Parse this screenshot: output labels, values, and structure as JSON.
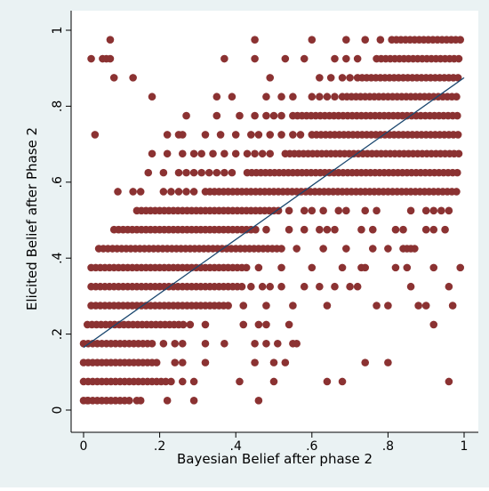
{
  "colors": {
    "background": "#eaf2f3",
    "plot_background": "#ffffff",
    "points": "#8b3232",
    "fit_line": "#1a476f",
    "axis": "#000000"
  },
  "chart_data": {
    "type": "scatter",
    "title": "",
    "xlabel": "Bayesian Belief after phase 2",
    "ylabel": "Elicited Belief after Phase 2",
    "xlim": [
      0,
      1
    ],
    "ylim": [
      0,
      1
    ],
    "x_ticks": [
      0,
      0.2,
      0.4,
      0.6,
      0.8,
      1
    ],
    "x_tick_labels": [
      "0",
      ".2",
      ".4",
      ".6",
      ".8",
      "1"
    ],
    "y_ticks": [
      0,
      0.2,
      0.4,
      0.6,
      0.8,
      1
    ],
    "y_tick_labels": [
      "0",
      ".2",
      ".4",
      ".6",
      ".8",
      "1"
    ],
    "grid": false,
    "legend": "none",
    "fit_line": {
      "x": [
        0,
        1
      ],
      "y": [
        0.165,
        0.875
      ]
    },
    "y_levels": [
      0.025,
      0.075,
      0.125,
      0.175,
      0.225,
      0.275,
      0.325,
      0.375,
      0.425,
      0.475,
      0.525,
      0.575,
      0.625,
      0.675,
      0.725,
      0.775,
      0.825,
      0.875,
      0.925,
      0.975
    ],
    "dense_ranges": [
      [
        0.025,
        0.0,
        0.13
      ],
      [
        0.075,
        0.0,
        0.22
      ],
      [
        0.125,
        0.0,
        0.2
      ],
      [
        0.175,
        0.0,
        0.17
      ],
      [
        0.225,
        0.01,
        0.27
      ],
      [
        0.275,
        0.02,
        0.38
      ],
      [
        0.325,
        0.02,
        0.42
      ],
      [
        0.375,
        0.02,
        0.43
      ],
      [
        0.425,
        0.04,
        0.53
      ],
      [
        0.475,
        0.08,
        0.46
      ],
      [
        0.525,
        0.14,
        0.52
      ],
      [
        0.575,
        0.32,
        0.99
      ],
      [
        0.625,
        0.43,
        0.99
      ],
      [
        0.675,
        0.53,
        0.99
      ],
      [
        0.725,
        0.6,
        0.99
      ],
      [
        0.775,
        0.55,
        0.99
      ],
      [
        0.825,
        0.68,
        0.99
      ],
      [
        0.875,
        0.72,
        0.99
      ],
      [
        0.925,
        0.77,
        0.99
      ],
      [
        0.975,
        0.81,
        0.99
      ]
    ],
    "scattered_points": [
      [
        0.01,
        0.025
      ],
      [
        0.14,
        0.025
      ],
      [
        0.15,
        0.025
      ],
      [
        0.22,
        0.025
      ],
      [
        0.29,
        0.025
      ],
      [
        0.46,
        0.025
      ],
      [
        0.23,
        0.075
      ],
      [
        0.26,
        0.075
      ],
      [
        0.29,
        0.075
      ],
      [
        0.41,
        0.075
      ],
      [
        0.5,
        0.075
      ],
      [
        0.64,
        0.075
      ],
      [
        0.68,
        0.075
      ],
      [
        0.96,
        0.075
      ],
      [
        0.24,
        0.125
      ],
      [
        0.26,
        0.125
      ],
      [
        0.32,
        0.125
      ],
      [
        0.45,
        0.125
      ],
      [
        0.5,
        0.125
      ],
      [
        0.53,
        0.125
      ],
      [
        0.74,
        0.125
      ],
      [
        0.8,
        0.125
      ],
      [
        0.18,
        0.175
      ],
      [
        0.21,
        0.175
      ],
      [
        0.24,
        0.175
      ],
      [
        0.26,
        0.175
      ],
      [
        0.32,
        0.175
      ],
      [
        0.37,
        0.175
      ],
      [
        0.45,
        0.175
      ],
      [
        0.48,
        0.175
      ],
      [
        0.51,
        0.175
      ],
      [
        0.55,
        0.175
      ],
      [
        0.56,
        0.175
      ],
      [
        0.28,
        0.225
      ],
      [
        0.32,
        0.225
      ],
      [
        0.42,
        0.225
      ],
      [
        0.46,
        0.225
      ],
      [
        0.48,
        0.225
      ],
      [
        0.54,
        0.225
      ],
      [
        0.92,
        0.225
      ],
      [
        0.42,
        0.275
      ],
      [
        0.48,
        0.275
      ],
      [
        0.55,
        0.275
      ],
      [
        0.64,
        0.275
      ],
      [
        0.77,
        0.275
      ],
      [
        0.8,
        0.275
      ],
      [
        0.88,
        0.275
      ],
      [
        0.9,
        0.275
      ],
      [
        0.97,
        0.275
      ],
      [
        0.44,
        0.325
      ],
      [
        0.47,
        0.325
      ],
      [
        0.49,
        0.325
      ],
      [
        0.52,
        0.325
      ],
      [
        0.58,
        0.325
      ],
      [
        0.62,
        0.325
      ],
      [
        0.66,
        0.325
      ],
      [
        0.7,
        0.325
      ],
      [
        0.72,
        0.325
      ],
      [
        0.86,
        0.325
      ],
      [
        0.96,
        0.325
      ],
      [
        0.46,
        0.375
      ],
      [
        0.52,
        0.375
      ],
      [
        0.6,
        0.375
      ],
      [
        0.68,
        0.375
      ],
      [
        0.73,
        0.375
      ],
      [
        0.74,
        0.375
      ],
      [
        0.82,
        0.375
      ],
      [
        0.85,
        0.375
      ],
      [
        0.92,
        0.375
      ],
      [
        0.99,
        0.375
      ],
      [
        0.56,
        0.425
      ],
      [
        0.63,
        0.425
      ],
      [
        0.69,
        0.425
      ],
      [
        0.76,
        0.425
      ],
      [
        0.8,
        0.425
      ],
      [
        0.84,
        0.425
      ],
      [
        0.85,
        0.425
      ],
      [
        0.86,
        0.425
      ],
      [
        0.87,
        0.425
      ],
      [
        0.48,
        0.475
      ],
      [
        0.54,
        0.475
      ],
      [
        0.58,
        0.475
      ],
      [
        0.62,
        0.475
      ],
      [
        0.64,
        0.475
      ],
      [
        0.66,
        0.475
      ],
      [
        0.73,
        0.475
      ],
      [
        0.76,
        0.475
      ],
      [
        0.82,
        0.475
      ],
      [
        0.84,
        0.475
      ],
      [
        0.9,
        0.475
      ],
      [
        0.92,
        0.475
      ],
      [
        0.95,
        0.475
      ],
      [
        0.54,
        0.525
      ],
      [
        0.58,
        0.525
      ],
      [
        0.6,
        0.525
      ],
      [
        0.63,
        0.525
      ],
      [
        0.67,
        0.525
      ],
      [
        0.69,
        0.525
      ],
      [
        0.74,
        0.525
      ],
      [
        0.77,
        0.525
      ],
      [
        0.86,
        0.525
      ],
      [
        0.9,
        0.525
      ],
      [
        0.92,
        0.525
      ],
      [
        0.94,
        0.525
      ],
      [
        0.96,
        0.525
      ],
      [
        0.21,
        0.575
      ],
      [
        0.23,
        0.575
      ],
      [
        0.25,
        0.575
      ],
      [
        0.27,
        0.575
      ],
      [
        0.29,
        0.575
      ],
      [
        0.09,
        0.575
      ],
      [
        0.13,
        0.575
      ],
      [
        0.15,
        0.575
      ],
      [
        0.17,
        0.625
      ],
      [
        0.21,
        0.625
      ],
      [
        0.25,
        0.625
      ],
      [
        0.27,
        0.625
      ],
      [
        0.29,
        0.625
      ],
      [
        0.31,
        0.625
      ],
      [
        0.33,
        0.625
      ],
      [
        0.35,
        0.625
      ],
      [
        0.37,
        0.625
      ],
      [
        0.39,
        0.625
      ],
      [
        0.18,
        0.675
      ],
      [
        0.22,
        0.675
      ],
      [
        0.26,
        0.675
      ],
      [
        0.29,
        0.675
      ],
      [
        0.31,
        0.675
      ],
      [
        0.34,
        0.675
      ],
      [
        0.37,
        0.675
      ],
      [
        0.4,
        0.675
      ],
      [
        0.43,
        0.675
      ],
      [
        0.45,
        0.675
      ],
      [
        0.47,
        0.675
      ],
      [
        0.49,
        0.675
      ],
      [
        0.03,
        0.725
      ],
      [
        0.22,
        0.725
      ],
      [
        0.25,
        0.725
      ],
      [
        0.26,
        0.725
      ],
      [
        0.32,
        0.725
      ],
      [
        0.36,
        0.725
      ],
      [
        0.4,
        0.725
      ],
      [
        0.44,
        0.725
      ],
      [
        0.46,
        0.725
      ],
      [
        0.49,
        0.725
      ],
      [
        0.52,
        0.725
      ],
      [
        0.55,
        0.725
      ],
      [
        0.57,
        0.725
      ],
      [
        0.27,
        0.775
      ],
      [
        0.35,
        0.775
      ],
      [
        0.41,
        0.775
      ],
      [
        0.45,
        0.775
      ],
      [
        0.48,
        0.775
      ],
      [
        0.5,
        0.775
      ],
      [
        0.52,
        0.775
      ],
      [
        0.18,
        0.825
      ],
      [
        0.35,
        0.825
      ],
      [
        0.39,
        0.825
      ],
      [
        0.48,
        0.825
      ],
      [
        0.52,
        0.825
      ],
      [
        0.55,
        0.825
      ],
      [
        0.6,
        0.825
      ],
      [
        0.62,
        0.825
      ],
      [
        0.64,
        0.825
      ],
      [
        0.66,
        0.825
      ],
      [
        0.08,
        0.875
      ],
      [
        0.13,
        0.875
      ],
      [
        0.49,
        0.875
      ],
      [
        0.62,
        0.875
      ],
      [
        0.65,
        0.875
      ],
      [
        0.68,
        0.875
      ],
      [
        0.7,
        0.875
      ],
      [
        0.02,
        0.925
      ],
      [
        0.05,
        0.925
      ],
      [
        0.06,
        0.925
      ],
      [
        0.07,
        0.925
      ],
      [
        0.37,
        0.925
      ],
      [
        0.45,
        0.925
      ],
      [
        0.53,
        0.925
      ],
      [
        0.58,
        0.925
      ],
      [
        0.66,
        0.925
      ],
      [
        0.69,
        0.925
      ],
      [
        0.72,
        0.925
      ],
      [
        0.07,
        0.975
      ],
      [
        0.45,
        0.975
      ],
      [
        0.6,
        0.975
      ],
      [
        0.69,
        0.975
      ],
      [
        0.74,
        0.975
      ],
      [
        0.78,
        0.975
      ]
    ]
  }
}
